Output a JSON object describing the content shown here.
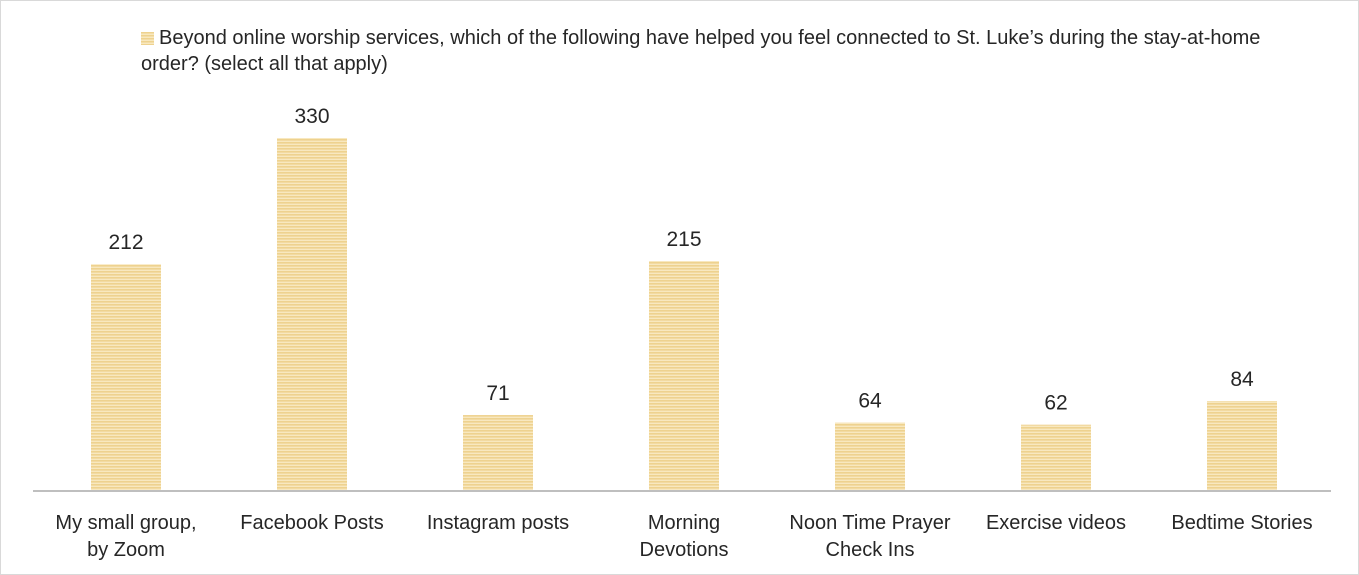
{
  "chart_data": {
    "type": "bar",
    "categories": [
      [
        "My small group,",
        "by Zoom"
      ],
      [
        "Facebook Posts"
      ],
      [
        "Instagram posts"
      ],
      [
        "Morning",
        "Devotions"
      ],
      [
        "Noon Time Prayer",
        "Check Ins"
      ],
      [
        "Exercise videos"
      ],
      [
        "Bedtime Stories"
      ]
    ],
    "series": [
      {
        "name": "Beyond online worship services, which of the following have helped you feel connected to St. Luke’s  during the stay-at-home order? (select all that apply)",
        "values": [
          212,
          330,
          71,
          215,
          64,
          62,
          84
        ]
      }
    ],
    "legend_position": "top",
    "grid": false,
    "colors": {
      "bar_main": "#eed28f",
      "bar_stripe": "#f8e8bf",
      "axis": "#bfbfbf",
      "text": "#262626"
    }
  }
}
